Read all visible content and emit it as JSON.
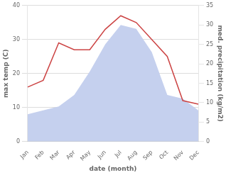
{
  "chart_data": {
    "type": "line",
    "xlabel": "date (month)",
    "ylabel": "max temp (C)",
    "y2label": "med. precipitation (kg/m2)",
    "categories": [
      "Jan",
      "Feb",
      "Mar",
      "Apr",
      "May",
      "Jun",
      "Jul",
      "Aug",
      "Sep",
      "Oct",
      "Nov",
      "Dec"
    ],
    "series": [
      {
        "type": "area",
        "color": "#c5d0ee",
        "axis": "y2",
        "values": [
          7,
          8,
          9,
          12,
          18,
          25,
          30,
          29,
          23,
          12,
          11,
          8
        ]
      },
      {
        "type": "line",
        "color": "#cc4444",
        "values": [
          16,
          18,
          29,
          27,
          27,
          33,
          37,
          35,
          30,
          25,
          12,
          11
        ]
      }
    ],
    "ylim": [
      0,
      40
    ],
    "yticks": [
      0,
      10,
      20,
      30,
      40
    ],
    "y2lim": [
      0,
      35
    ],
    "y2ticks": [
      0,
      5,
      10,
      15,
      20,
      25,
      30,
      35
    ],
    "grid": true
  }
}
